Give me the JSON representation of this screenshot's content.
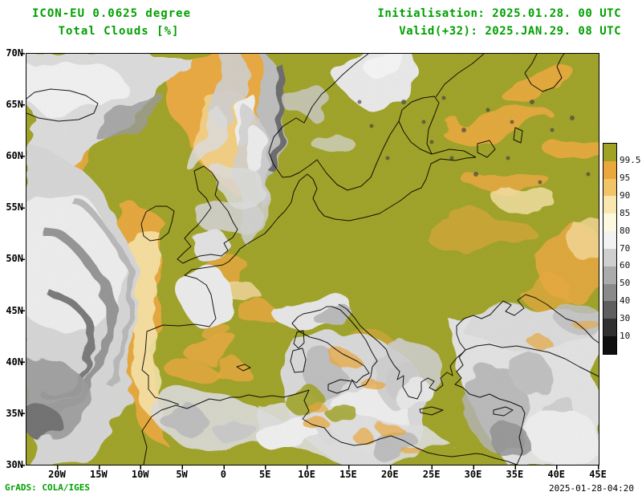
{
  "header": {
    "model": "ICON-EU 0.0625 degree",
    "variable": "Total Clouds  [%]",
    "init": "Initialisation: 2025.01.28. 00 UTC",
    "valid": "Valid(+32): 2025.JAN.29. 08 UTC"
  },
  "map": {
    "lat_ticks": [
      "70N",
      "65N",
      "60N",
      "55N",
      "50N",
      "45N",
      "40N",
      "35N",
      "30N"
    ],
    "lon_ticks": [
      "20W",
      "15W",
      "10W",
      "5W",
      "0",
      "5E",
      "10E",
      "15E",
      "20E",
      "25E",
      "30E",
      "35E",
      "40E",
      "45E"
    ]
  },
  "legend": {
    "labels": [
      "99.5",
      "95",
      "90",
      "85",
      "80",
      "70",
      "60",
      "50",
      "40",
      "30",
      "10"
    ],
    "colors": [
      "#9fa224",
      "#eaa83c",
      "#f2c468",
      "#f8e7ae",
      "#fdf8e0",
      "#f2f2f2",
      "#cfcfcf",
      "#ababab",
      "#8a8a8a",
      "#5f5f5f",
      "#303030",
      "#0f0f0f"
    ]
  },
  "footer": {
    "credit": "GrADS: COLA/IGES",
    "timestamp": "2025-01-28-04:20"
  },
  "colors": {
    "title_green": "#00a000",
    "overcast_olive": "#9fa224",
    "coastline": "#000000"
  }
}
